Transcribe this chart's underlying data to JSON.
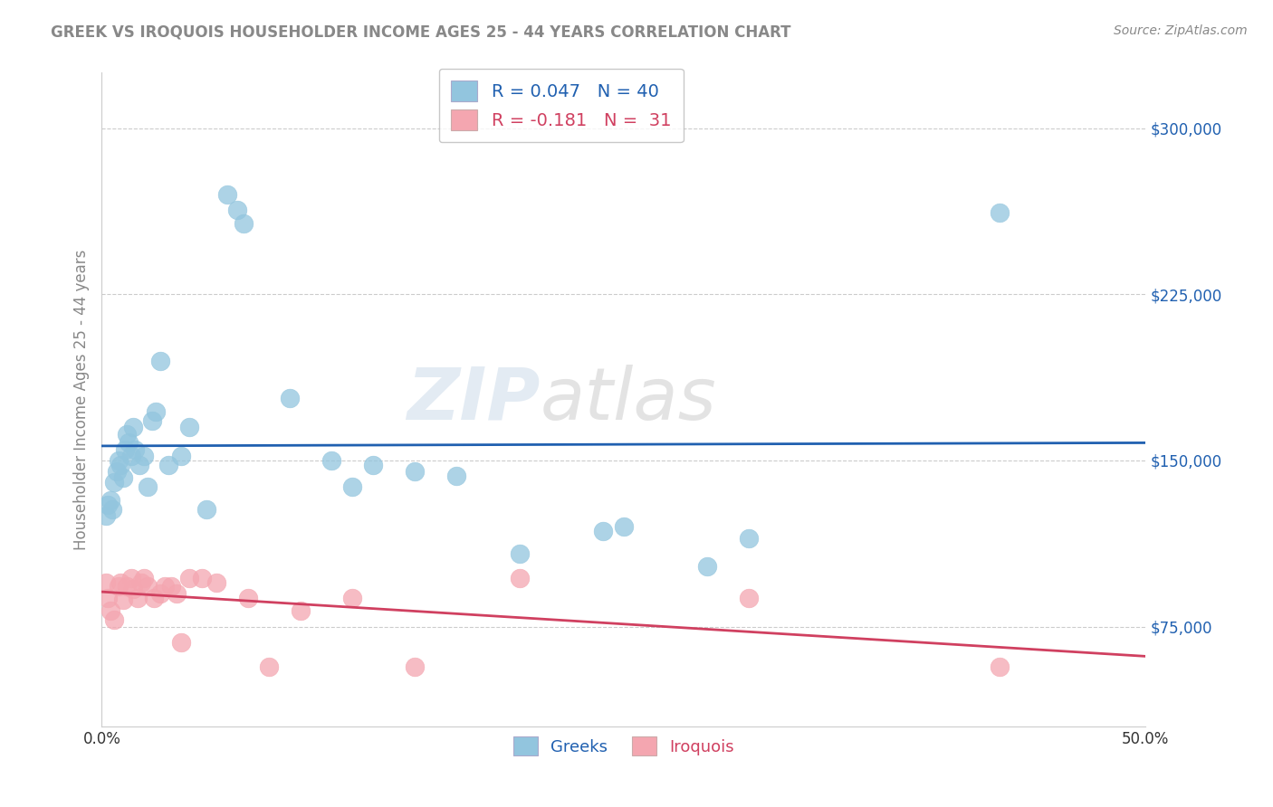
{
  "title": "GREEK VS IROQUOIS HOUSEHOLDER INCOME AGES 25 - 44 YEARS CORRELATION CHART",
  "source": "Source: ZipAtlas.com",
  "ylabel": "Householder Income Ages 25 - 44 years",
  "xlim": [
    0.0,
    0.5
  ],
  "ylim": [
    30000,
    325000
  ],
  "yticks": [
    75000,
    150000,
    225000,
    300000
  ],
  "ytick_labels": [
    "$75,000",
    "$150,000",
    "$225,000",
    "$300,000"
  ],
  "xticks": [
    0.0,
    0.05,
    0.1,
    0.15,
    0.2,
    0.25,
    0.3,
    0.35,
    0.4,
    0.45,
    0.5
  ],
  "xtick_labels": [
    "0.0%",
    "",
    "",
    "",
    "",
    "",
    "",
    "",
    "",
    "",
    "50.0%"
  ],
  "greek_color": "#92C5DE",
  "iroquois_color": "#F4A6B0",
  "greek_line_color": "#2060B0",
  "iroquois_line_color": "#D04060",
  "legend1_label": "R = 0.047   N = 40",
  "legend2_label": "R = -0.181   N =  31",
  "greeks_x": [
    0.002,
    0.003,
    0.004,
    0.005,
    0.006,
    0.007,
    0.008,
    0.009,
    0.01,
    0.011,
    0.012,
    0.013,
    0.014,
    0.015,
    0.016,
    0.018,
    0.02,
    0.022,
    0.024,
    0.026,
    0.028,
    0.032,
    0.038,
    0.042,
    0.05,
    0.06,
    0.065,
    0.068,
    0.09,
    0.11,
    0.12,
    0.13,
    0.15,
    0.17,
    0.2,
    0.24,
    0.25,
    0.29,
    0.31,
    0.43
  ],
  "greeks_y": [
    125000,
    130000,
    132000,
    128000,
    140000,
    145000,
    150000,
    148000,
    142000,
    155000,
    162000,
    158000,
    152000,
    165000,
    155000,
    148000,
    152000,
    138000,
    168000,
    172000,
    195000,
    148000,
    152000,
    165000,
    128000,
    270000,
    263000,
    257000,
    178000,
    150000,
    138000,
    148000,
    145000,
    143000,
    108000,
    118000,
    120000,
    102000,
    115000,
    262000
  ],
  "iroquois_x": [
    0.002,
    0.003,
    0.004,
    0.006,
    0.008,
    0.009,
    0.01,
    0.012,
    0.014,
    0.015,
    0.017,
    0.019,
    0.02,
    0.022,
    0.025,
    0.028,
    0.03,
    0.033,
    0.036,
    0.038,
    0.042,
    0.048,
    0.055,
    0.07,
    0.08,
    0.095,
    0.12,
    0.15,
    0.2,
    0.31,
    0.43
  ],
  "iroquois_y": [
    95000,
    88000,
    82000,
    78000,
    93000,
    95000,
    87000,
    93000,
    97000,
    92000,
    88000,
    95000,
    97000,
    93000,
    88000,
    90000,
    93000,
    93000,
    90000,
    68000,
    97000,
    97000,
    95000,
    88000,
    57000,
    82000,
    88000,
    57000,
    97000,
    88000,
    57000
  ]
}
